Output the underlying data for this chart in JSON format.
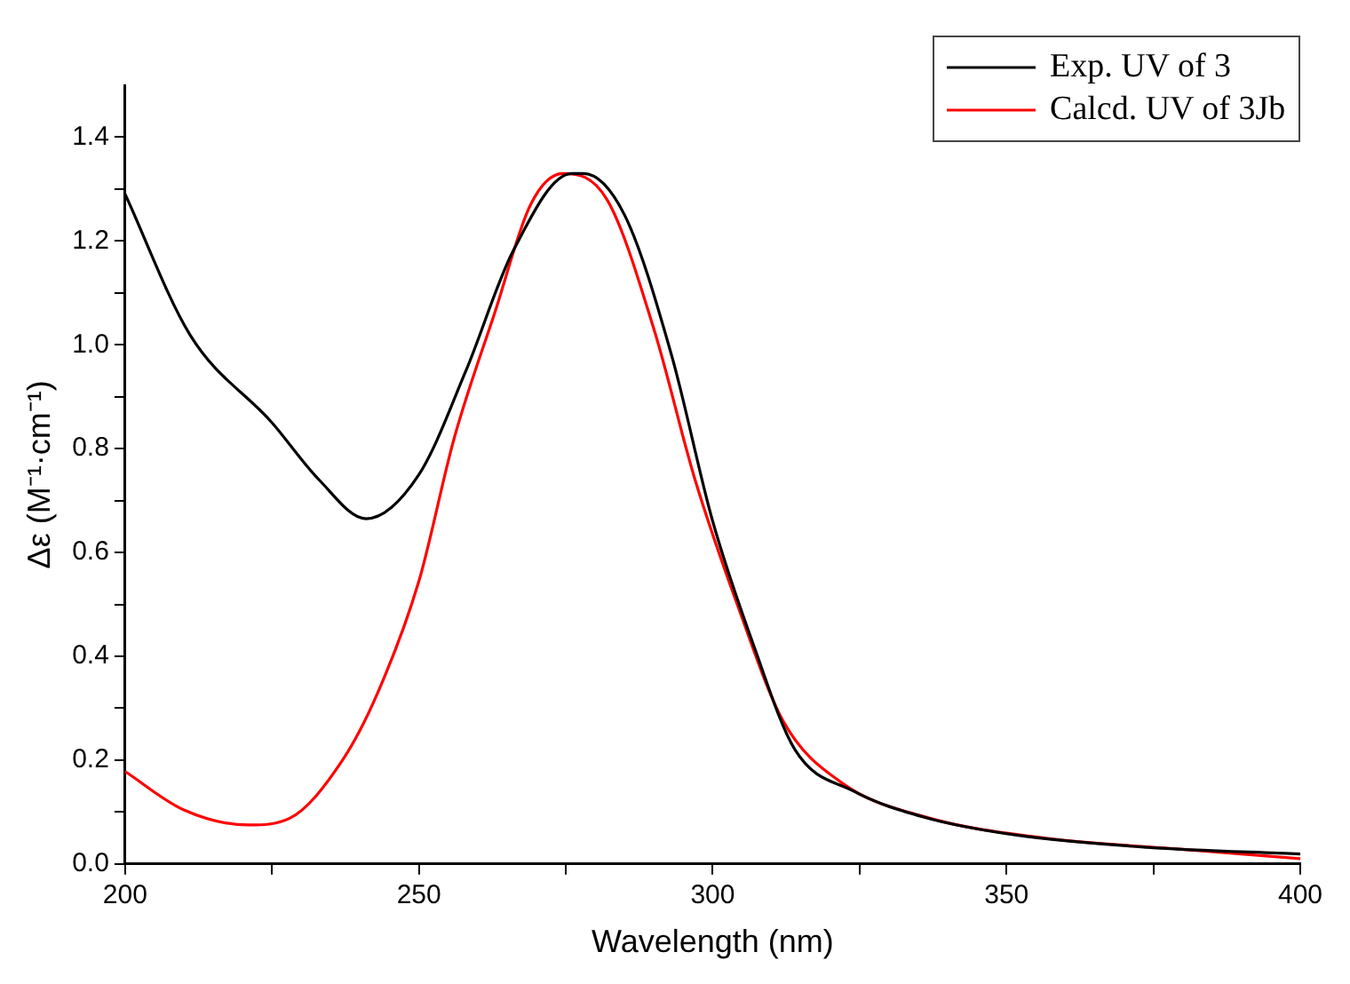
{
  "chart_data": {
    "type": "line",
    "xlabel": "Wavelength (nm)",
    "ylabel": "Δε (M⁻¹·cm⁻¹)",
    "xlim": [
      200,
      400
    ],
    "xticks": [
      200,
      {
        "value": 225,
        "label": null
      },
      250,
      {
        "value": 275,
        "label": null
      },
      300,
      {
        "value": 325,
        "label": null
      },
      350,
      {
        "value": 375,
        "label": null
      },
      400
    ],
    "ylim": [
      0,
      1.5
    ],
    "yticks": [
      {
        "value": 0,
        "label": "0.0"
      },
      {
        "value": 0.1,
        "label": null
      },
      0.2,
      {
        "value": 0.3,
        "label": null
      },
      0.4,
      {
        "value": 0.5,
        "label": null
      },
      0.6,
      {
        "value": 0.7,
        "label": null
      },
      0.8,
      {
        "value": 0.9,
        "label": null
      },
      {
        "value": 1.0,
        "label": "1.0"
      },
      {
        "value": 1.1,
        "label": null
      },
      1.2,
      {
        "value": 1.3,
        "label": null
      },
      1.4
    ],
    "grid": false,
    "legend": "top right",
    "marker": "none",
    "line_style": "solid",
    "series": [
      {
        "name": "Exp. UV of 3",
        "color": "#000000",
        "x": [
          200,
          211,
          225,
          233,
          241,
          250,
          258,
          266,
          276,
          278,
          285,
          293,
          300,
          307,
          314,
          324,
          336,
          352,
          374,
          400
        ],
        "values": [
          1.29,
          1.02,
          0.85,
          0.74,
          0.665,
          0.75,
          0.95,
          1.18,
          1.33,
          1.33,
          1.25,
          0.98,
          0.66,
          0.42,
          0.22,
          0.14,
          0.09,
          0.055,
          0.032,
          0.019
        ]
      },
      {
        "name": "Calcd. UV of 3Jb",
        "color": "#ff0000",
        "x": [
          200,
          210,
          221,
          228,
          237,
          243,
          250,
          256,
          263,
          269,
          274.5,
          282,
          290,
          297,
          304.5,
          312,
          322,
          336,
          357,
          379,
          400
        ],
        "values": [
          0.178,
          0.104,
          0.075,
          0.088,
          0.2,
          0.33,
          0.545,
          0.82,
          1.065,
          1.27,
          1.33,
          1.28,
          1.03,
          0.74,
          0.49,
          0.275,
          0.156,
          0.091,
          0.049,
          0.029,
          0.01
        ]
      }
    ]
  }
}
